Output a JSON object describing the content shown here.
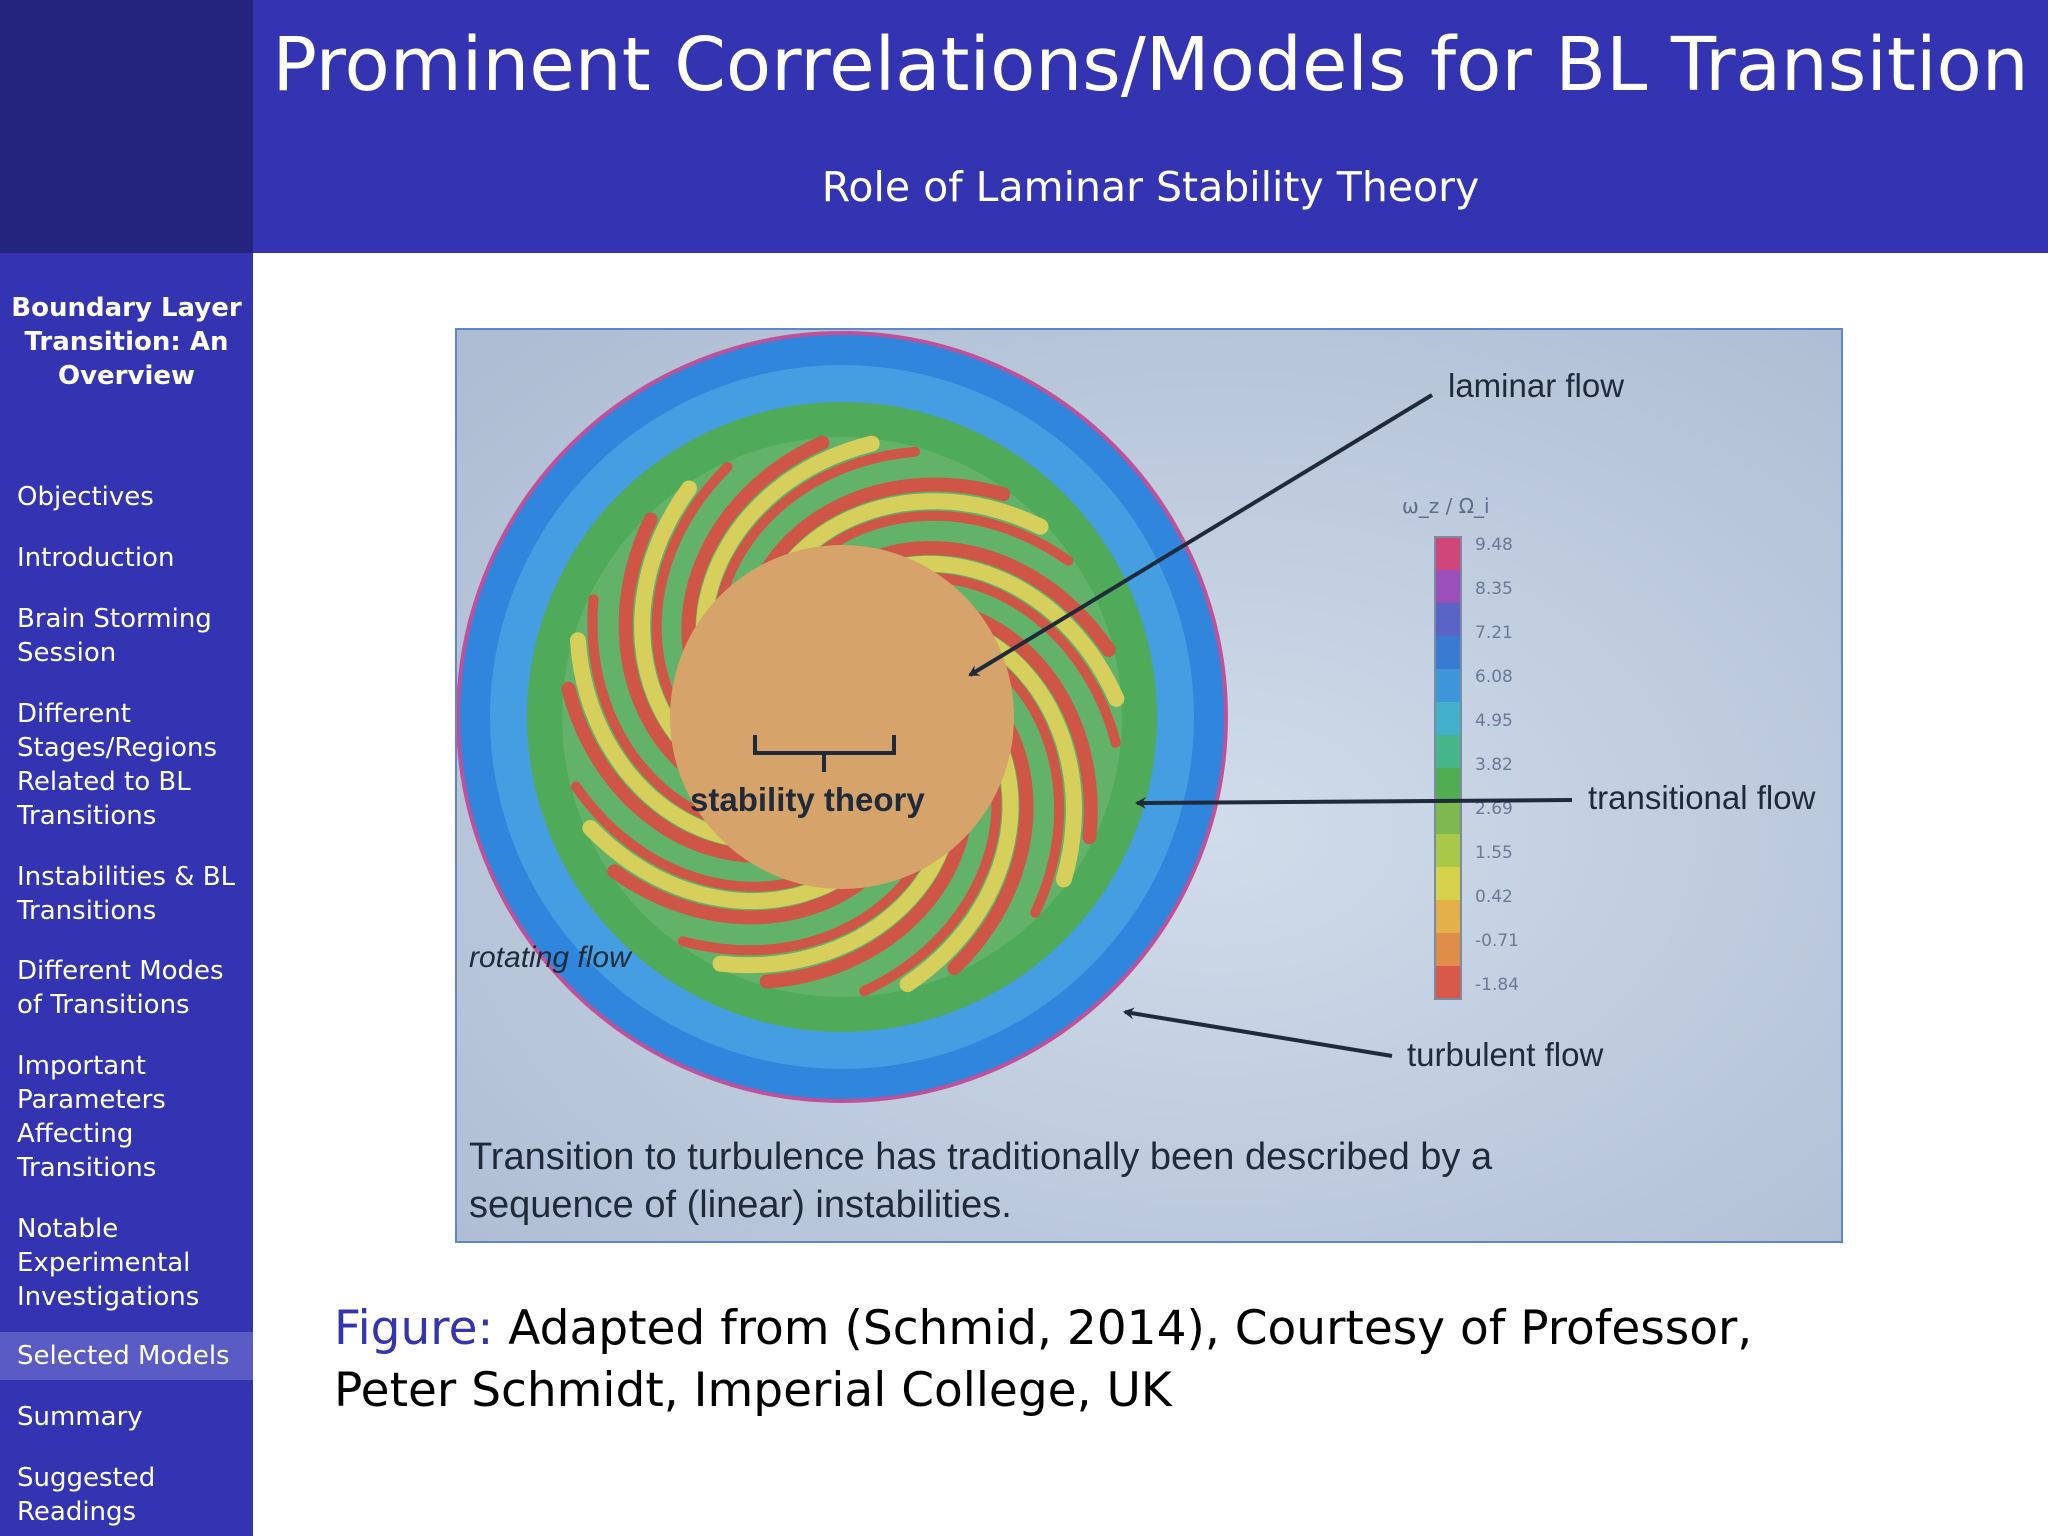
{
  "header": {
    "title": "Prominent Correlations/Models for BL Transition",
    "subtitle": "Role of Laminar Stability Theory"
  },
  "sidebar": {
    "title_lines": [
      "Boundary Layer",
      "Transition: An",
      "Overview"
    ],
    "items": [
      {
        "lines": [
          "Objectives"
        ]
      },
      {
        "lines": [
          "Introduction"
        ]
      },
      {
        "lines": [
          "Brain Storming",
          "Session"
        ]
      },
      {
        "lines": [
          "Different",
          "Stages/Regions",
          "Related to BL",
          "Transitions"
        ]
      },
      {
        "lines": [
          "Instabilities & BL",
          "Transitions"
        ]
      },
      {
        "lines": [
          "Different Modes",
          "of Transitions"
        ]
      },
      {
        "lines": [
          "Important",
          "Parameters",
          "Affecting",
          "Transitions"
        ]
      },
      {
        "lines": [
          "Notable",
          "Experimental",
          "Investigations"
        ]
      },
      {
        "lines": [
          "Selected Models"
        ],
        "active": true
      },
      {
        "lines": [
          "Summary"
        ]
      },
      {
        "lines": [
          "Suggested",
          "Readings"
        ]
      }
    ]
  },
  "figure": {
    "labels": {
      "laminar": "laminar flow",
      "transitional": "transitional flow",
      "turbulent": "turbulent flow",
      "rotating": "rotating flow",
      "stability": "stability theory"
    },
    "colorbar": {
      "title": "ω_z / Ω_i",
      "ticks": [
        "9.48",
        "8.35",
        "7.21",
        "6.08",
        "4.95",
        "3.82",
        "2.69",
        "1.55",
        "0.42",
        "-0.71",
        "-1.84"
      ],
      "colors": [
        "#d0457a",
        "#9a50b8",
        "#5a63c6",
        "#3a7ad2",
        "#3e96d8",
        "#43b0cc",
        "#47b58a",
        "#52ad52",
        "#7eb84e",
        "#a9c748",
        "#d5d14a",
        "#e3b04a",
        "#df8d48",
        "#d8594a"
      ]
    },
    "caption_lines": [
      "Transition to turbulence has traditionally been described by a",
      "sequence of (linear) instabilities."
    ],
    "colors": {
      "background": "#b8c6da",
      "outer_ring": "#2f86dc",
      "green_band": "#4faa5a",
      "yellow_band": "#e3d25a",
      "red_band": "#dc4a42",
      "core": "#d6a46a",
      "rim": "#c0509a"
    }
  },
  "caption": {
    "label": "Figure:",
    "text": "Adapted from (Schmid, 2014), Courtesy of Professor, Peter Schmidt, Imperial College, UK"
  },
  "theme": {
    "primary": "#3434b2",
    "dark": "#24247f",
    "active": "#5b5bc6"
  }
}
